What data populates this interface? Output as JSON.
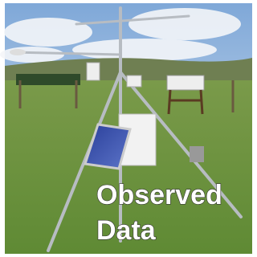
{
  "caption": {
    "lines": [
      "Observed",
      "Data"
    ]
  }
}
